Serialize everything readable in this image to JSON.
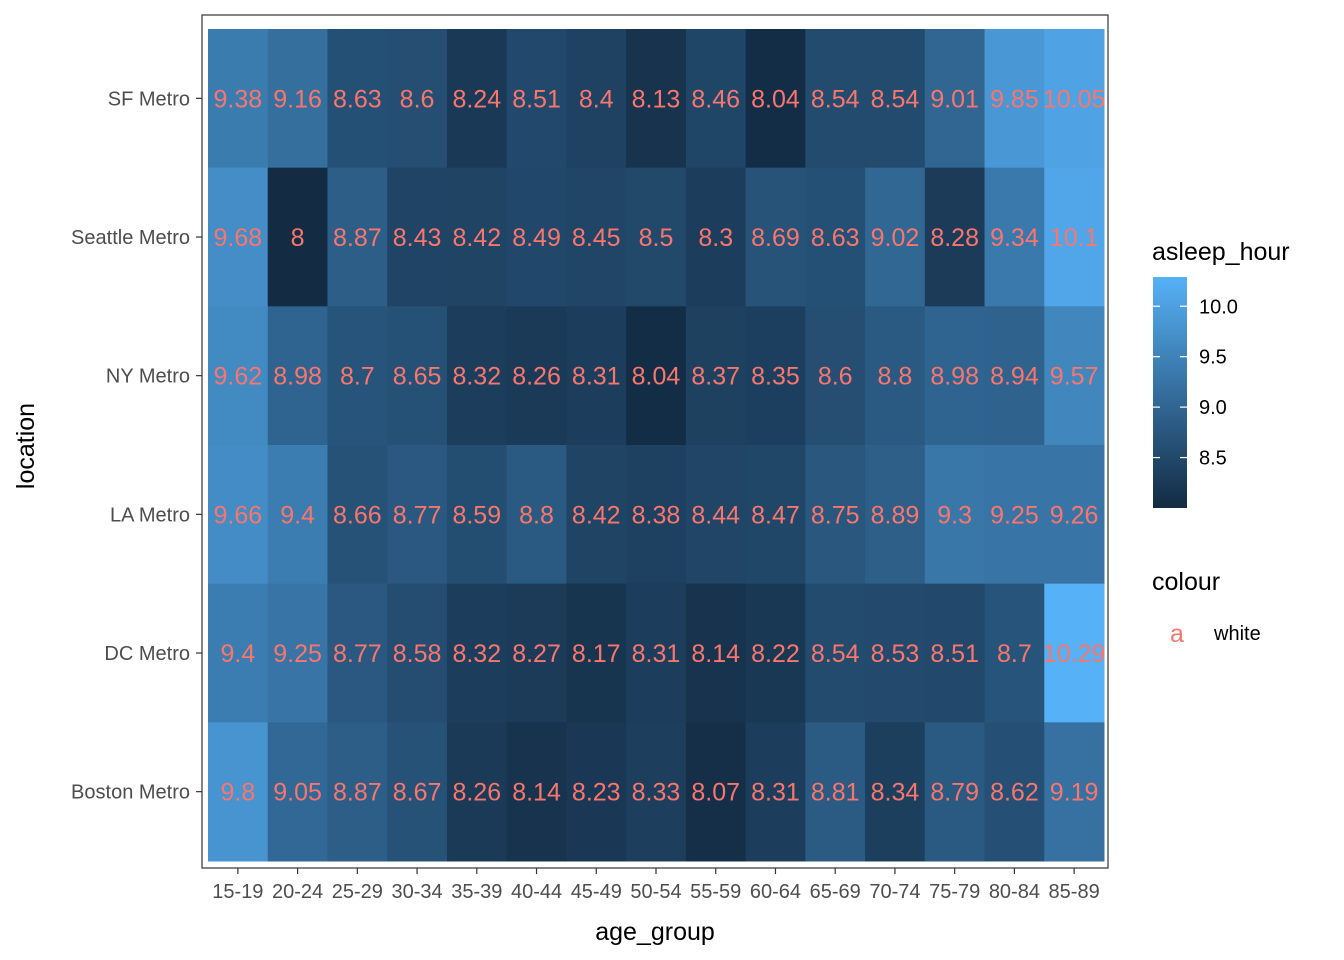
{
  "chart_data": {
    "type": "heatmap",
    "xlabel": "age_group",
    "ylabel": "location",
    "x_categories": [
      "15-19",
      "20-24",
      "25-29",
      "30-34",
      "35-39",
      "40-44",
      "45-49",
      "50-54",
      "55-59",
      "60-64",
      "65-69",
      "70-74",
      "75-79",
      "80-84",
      "85-89"
    ],
    "y_categories": [
      "SF Metro",
      "Seattle Metro",
      "NY Metro",
      "LA Metro",
      "DC Metro",
      "Boston Metro"
    ],
    "values": [
      [
        9.38,
        9.16,
        8.63,
        8.6,
        8.24,
        8.51,
        8.4,
        8.13,
        8.46,
        8.04,
        8.54,
        8.54,
        9.01,
        9.85,
        10.05
      ],
      [
        9.68,
        8,
        8.87,
        8.43,
        8.42,
        8.49,
        8.45,
        8.5,
        8.3,
        8.69,
        8.63,
        9.02,
        8.28,
        9.34,
        10.1
      ],
      [
        9.62,
        8.98,
        8.7,
        8.65,
        8.32,
        8.26,
        8.31,
        8.04,
        8.37,
        8.35,
        8.6,
        8.8,
        8.98,
        8.94,
        9.57
      ],
      [
        9.66,
        9.4,
        8.66,
        8.77,
        8.59,
        8.8,
        8.42,
        8.38,
        8.44,
        8.47,
        8.75,
        8.89,
        9.3,
        9.25,
        9.26
      ],
      [
        9.4,
        9.25,
        8.77,
        8.58,
        8.32,
        8.27,
        8.17,
        8.31,
        8.14,
        8.22,
        8.54,
        8.53,
        8.51,
        8.7,
        10.29
      ],
      [
        9.8,
        9.05,
        8.87,
        8.67,
        8.26,
        8.14,
        8.23,
        8.33,
        8.07,
        8.31,
        8.81,
        8.34,
        8.79,
        8.62,
        9.19
      ]
    ],
    "fill_legend": {
      "title": "asleep_hour",
      "breaks": [
        "10.0",
        "9.5",
        "9.0",
        "8.5"
      ],
      "break_values": [
        10.0,
        9.5,
        9.0,
        8.5
      ],
      "min": 8.0,
      "max": 10.29,
      "low_color": "#132b43",
      "high_color": "#56b1f7"
    },
    "colour_legend": {
      "title": "colour",
      "key_glyph": "a",
      "label": "white"
    },
    "label_color": "#f8766d",
    "grid": false
  }
}
